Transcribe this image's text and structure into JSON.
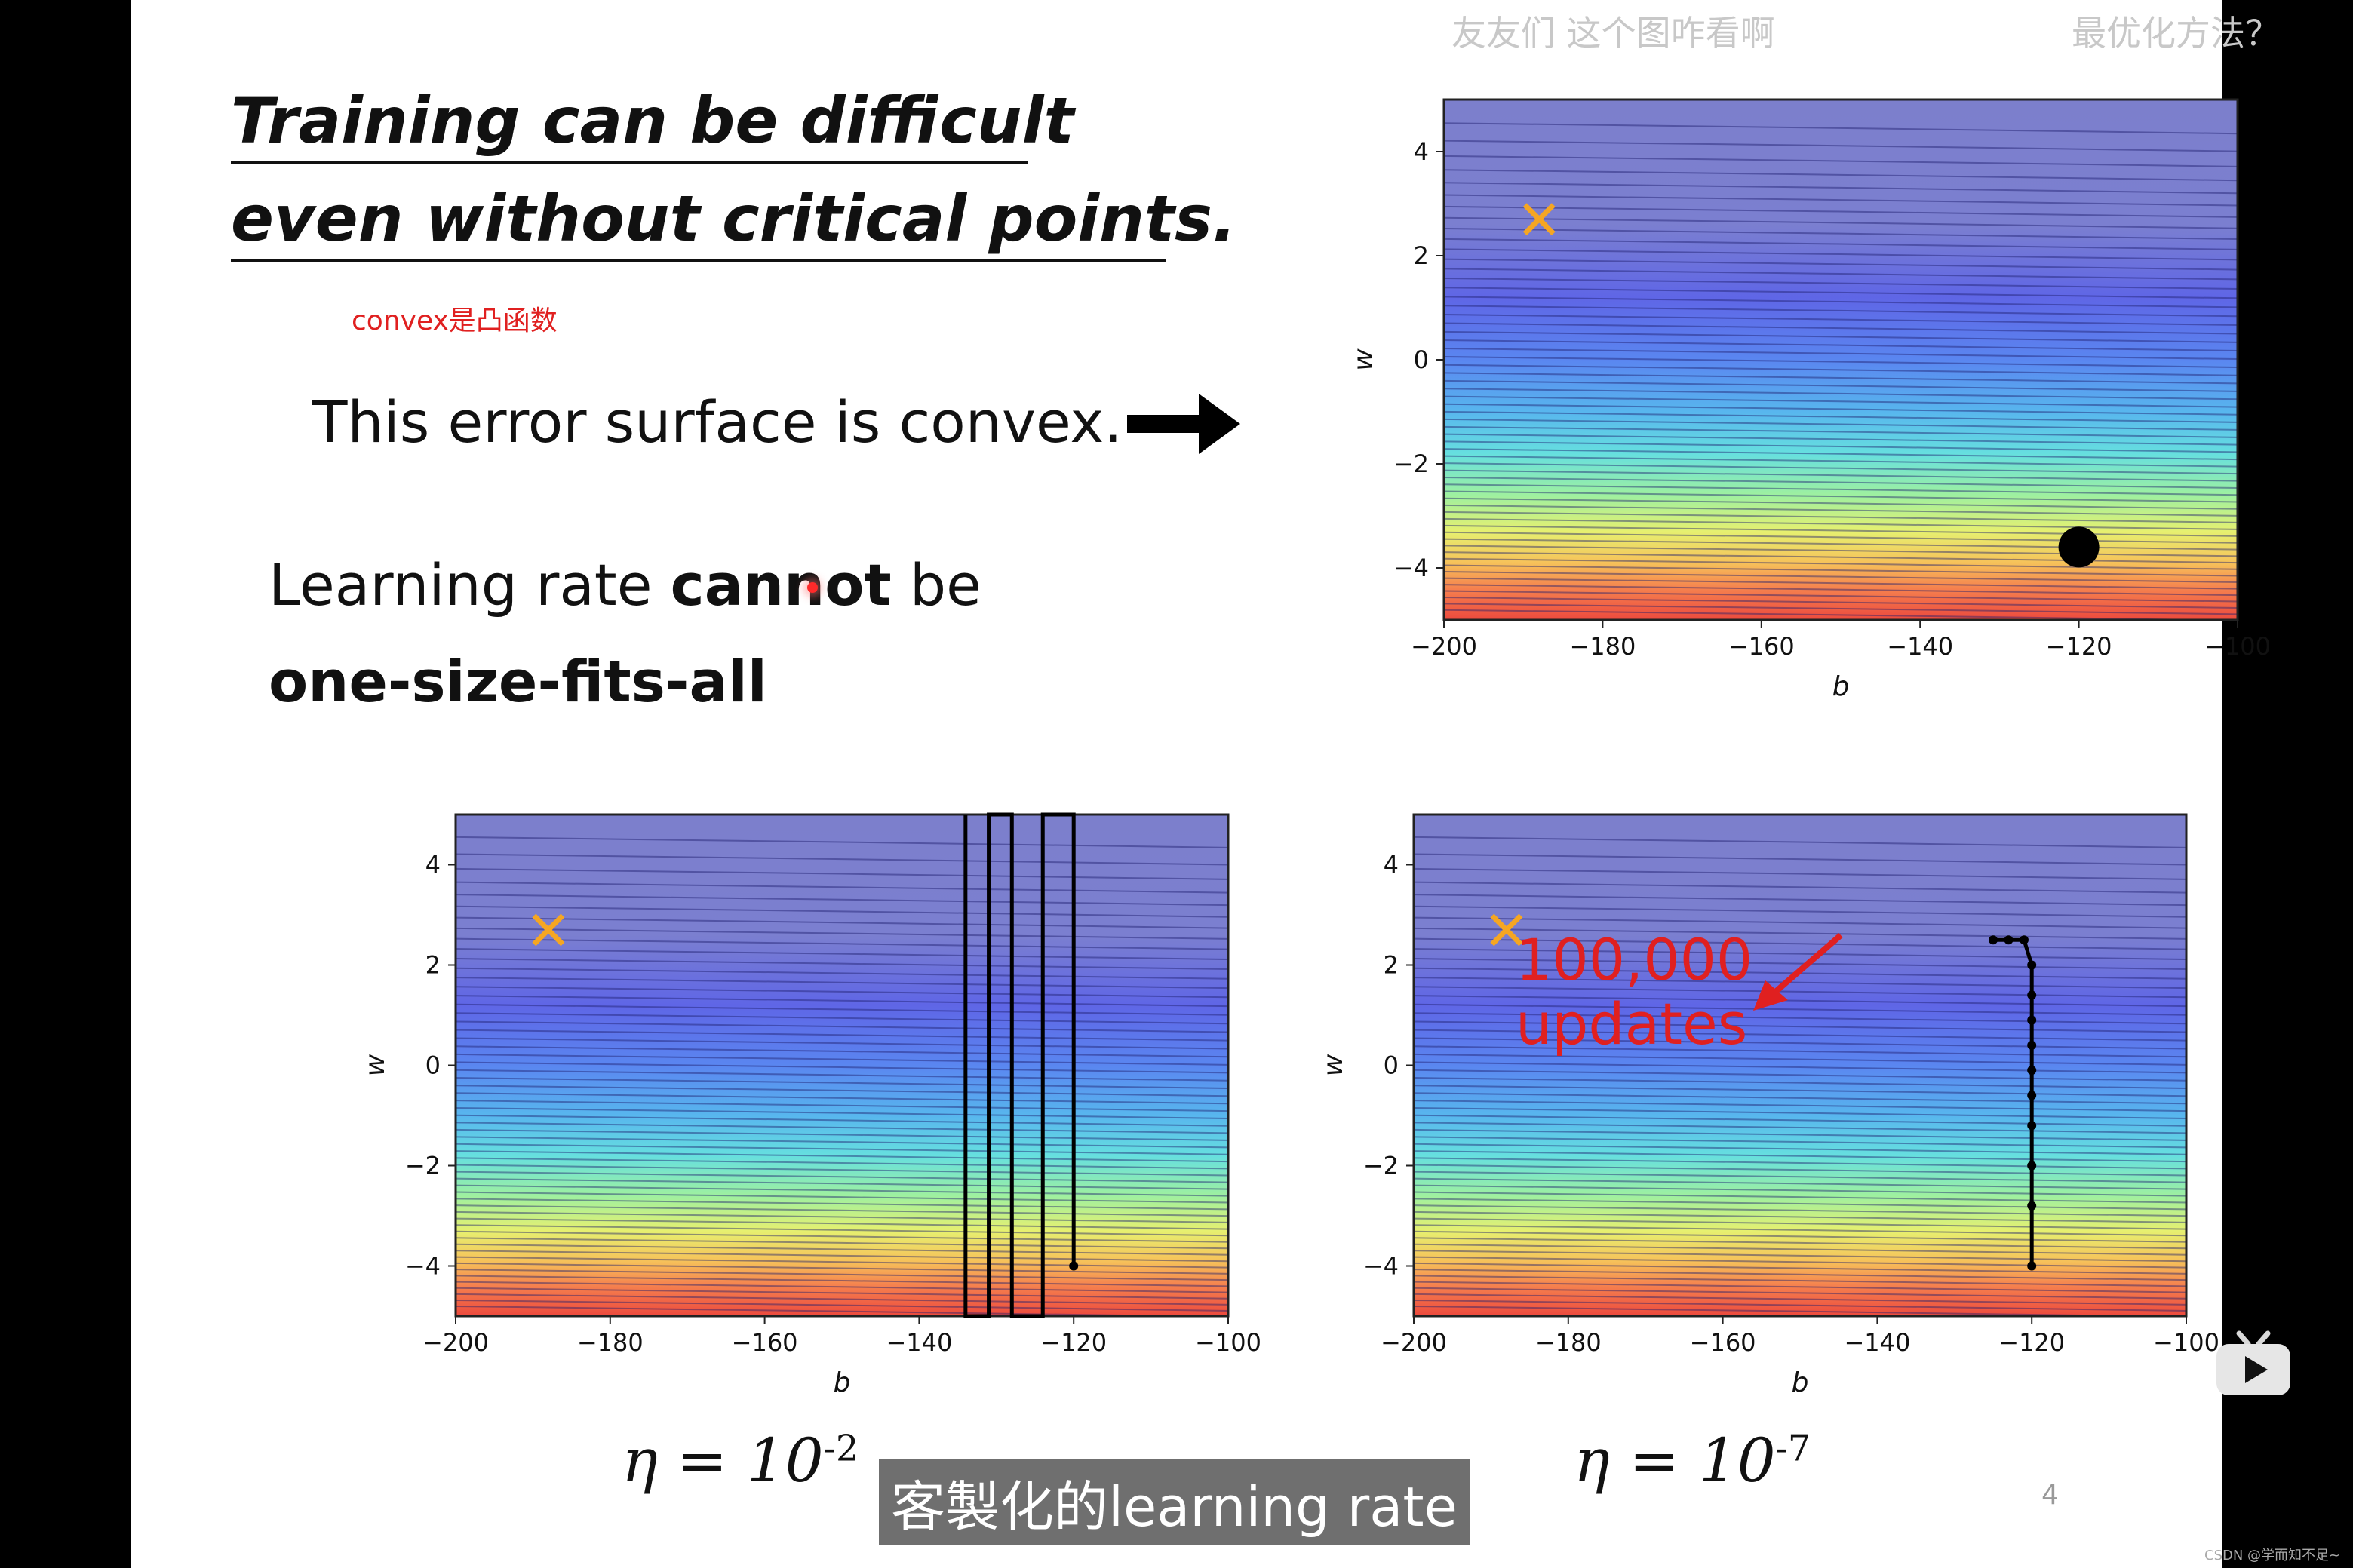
{
  "header": {
    "overlay_left": "友友们 这个图咋看啊",
    "overlay_right": "最优化方法？"
  },
  "slide": {
    "title_line1": "Training can be difficult",
    "title_line2": "even without critical points.",
    "annotation": "convex是凸函数",
    "statement": "This error surface is convex.",
    "lr_part1": "Learning rate ",
    "lr_bold": "cannot",
    "lr_part2": " be",
    "lr_line2": "one-size-fits-all",
    "eta_left": "η = 10",
    "eta_left_exp": "-2",
    "eta_right": "η = 10",
    "eta_right_exp": "-7",
    "updates_line1": "100,000",
    "updates_line2": "updates",
    "page_number": "4"
  },
  "subtitle": "客製化的learning rate",
  "watermark": "CSDN @学而知不足~",
  "colors": {
    "cross": "#f5a623",
    "annotation": "#e02020",
    "subtitle_bg": "#6f6f6f"
  },
  "chart_data": [
    {
      "id": "top-right",
      "type": "contour",
      "title": "",
      "xlabel": "b",
      "ylabel": "w",
      "xlim": [
        -200,
        -100
      ],
      "ylim": [
        -5,
        5
      ],
      "xticks": [
        -200,
        -180,
        -160,
        -140,
        -120,
        -100
      ],
      "yticks": [
        -4,
        -2,
        0,
        2,
        4
      ],
      "minimum_marker": {
        "b": -188,
        "w": 2.7
      },
      "start_point": {
        "b": -120,
        "w": -3.6
      }
    },
    {
      "id": "bottom-left",
      "type": "contour",
      "xlabel": "b",
      "ylabel": "w",
      "xlim": [
        -200,
        -100
      ],
      "ylim": [
        -5,
        5
      ],
      "xticks": [
        -200,
        -180,
        -160,
        -140,
        -120,
        -100
      ],
      "yticks": [
        -4,
        -2,
        0,
        2,
        4
      ],
      "minimum_marker": {
        "b": -188,
        "w": 2.7
      },
      "learning_rate": "10^-2",
      "path_b": [
        -120,
        -120,
        -124,
        -124,
        -128,
        -128,
        -131,
        -131,
        -134,
        -134
      ],
      "path_w": [
        -4,
        5,
        5,
        -5,
        -5,
        5,
        5,
        -5,
        -5,
        5
      ]
    },
    {
      "id": "bottom-right",
      "type": "contour",
      "xlabel": "b",
      "ylabel": "w",
      "xlim": [
        -200,
        -100
      ],
      "ylim": [
        -5,
        5
      ],
      "xticks": [
        -200,
        -180,
        -160,
        -140,
        -120,
        -100
      ],
      "yticks": [
        -4,
        -2,
        0,
        2,
        4
      ],
      "minimum_marker": {
        "b": -188,
        "w": 2.7
      },
      "learning_rate": "10^-7",
      "path_b": [
        -120,
        -120,
        -120,
        -120,
        -120,
        -120,
        -120,
        -120,
        -120,
        -120,
        -121,
        -123,
        -125
      ],
      "path_w": [
        -4,
        -2.8,
        -2,
        -1.2,
        -0.6,
        -0.1,
        0.4,
        0.9,
        1.4,
        2.0,
        2.5,
        2.5,
        2.5
      ]
    }
  ]
}
